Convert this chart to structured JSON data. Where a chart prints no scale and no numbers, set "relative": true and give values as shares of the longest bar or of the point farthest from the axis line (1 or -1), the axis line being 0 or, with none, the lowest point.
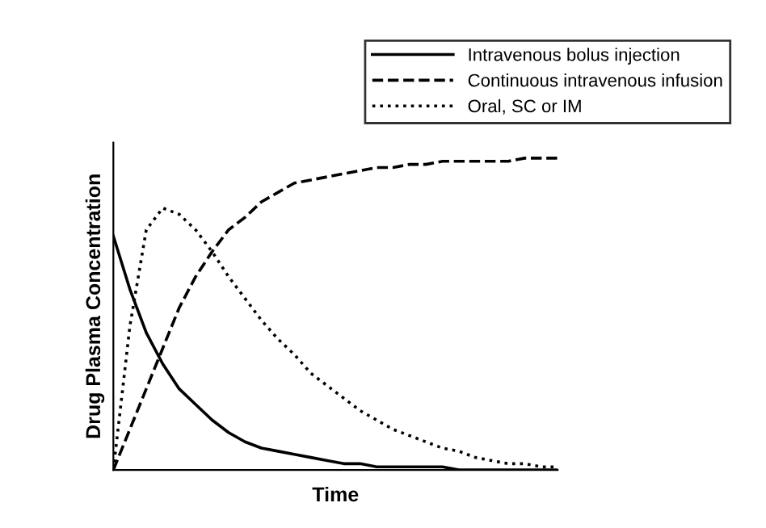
{
  "chart_data": {
    "type": "line",
    "relative": true,
    "xlabel": "Time",
    "ylabel": "Drug Plasma Concentration",
    "legend": "top right",
    "grid": false,
    "marker": "none",
    "categories": [
      null,
      null,
      null,
      null,
      null,
      null,
      null,
      null,
      null,
      null,
      null,
      null,
      null,
      null,
      null,
      null,
      null,
      null,
      null,
      null,
      null,
      null,
      null,
      null,
      null,
      null,
      null,
      null
    ],
    "series": [
      {
        "name": "Intravenous bolus injection",
        "color": "#000000",
        "line_style": "solid",
        "values": [
          0.75,
          0.58,
          0.44,
          0.34,
          0.26,
          0.21,
          0.16,
          0.12,
          0.09,
          0.07,
          0.06,
          0.05,
          0.04,
          0.03,
          0.02,
          0.02,
          0.01,
          0.01,
          0.01,
          0.01,
          0.01,
          0,
          0,
          0,
          0,
          0,
          0,
          0
        ]
      },
      {
        "name": "Continuous intravenous infusion",
        "color": "#000000",
        "line_style": "dashed",
        "values": [
          0,
          0.13,
          0.26,
          0.39,
          0.52,
          0.62,
          0.7,
          0.77,
          0.81,
          0.86,
          0.89,
          0.92,
          0.93,
          0.94,
          0.95,
          0.96,
          0.97,
          0.97,
          0.98,
          0.98,
          0.99,
          0.99,
          0.99,
          0.99,
          0.99,
          1,
          1,
          1
        ]
      },
      {
        "name": "Oral, SC or IM",
        "color": "#000000",
        "line_style": "dotted",
        "values": [
          0,
          0.46,
          0.77,
          0.84,
          0.82,
          0.77,
          0.7,
          0.62,
          0.55,
          0.48,
          0.42,
          0.37,
          0.31,
          0.27,
          0.23,
          0.19,
          0.16,
          0.13,
          0.11,
          0.09,
          0.07,
          0.06,
          0.04,
          0.03,
          0.02,
          0.02,
          0.01,
          0.01
        ]
      }
    ]
  }
}
